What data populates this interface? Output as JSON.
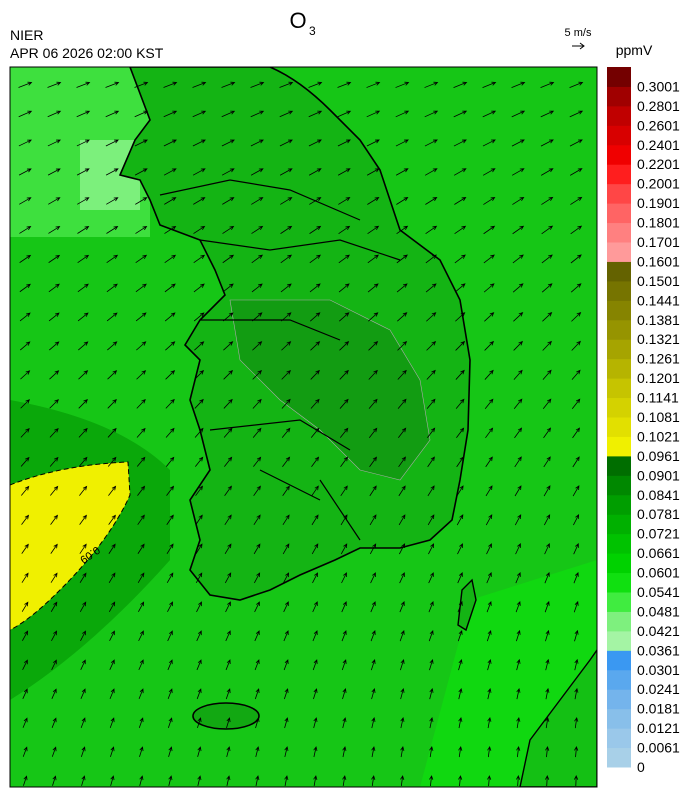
{
  "header": {
    "title": "O",
    "title_subscript": "3",
    "agency": "NIER",
    "timestamp": "APR 06 2026 02:00 KST",
    "wind_scale": "5 m/s"
  },
  "map": {
    "contour_label": "0.09"
  },
  "colorbar": {
    "unit": "ppmV",
    "levels": [
      {
        "value": 0,
        "label": "0",
        "color": "#a8d0e8"
      },
      {
        "value": 0.0061,
        "label": "0.0061",
        "color": "#9ac8ea"
      },
      {
        "value": 0.0121,
        "label": "0.0121",
        "color": "#88bfea"
      },
      {
        "value": 0.0181,
        "label": "0.0181",
        "color": "#74b4ec"
      },
      {
        "value": 0.0241,
        "label": "0.0241",
        "color": "#5aa8ee"
      },
      {
        "value": 0.0301,
        "label": "0.0301",
        "color": "#3a98f2"
      },
      {
        "value": 0.0361,
        "label": "0.0361",
        "color": "#a4f4a4"
      },
      {
        "value": 0.0421,
        "label": "0.0421",
        "color": "#7ef07e"
      },
      {
        "value": 0.0481,
        "label": "0.0481",
        "color": "#40ec40"
      },
      {
        "value": 0.0541,
        "label": "0.0541",
        "color": "#10e010"
      },
      {
        "value": 0.0601,
        "label": "0.0601",
        "color": "#00d200"
      },
      {
        "value": 0.0661,
        "label": "0.0661",
        "color": "#00c200"
      },
      {
        "value": 0.0721,
        "label": "0.0721",
        "color": "#00b000"
      },
      {
        "value": 0.0781,
        "label": "0.0781",
        "color": "#009e00"
      },
      {
        "value": 0.0841,
        "label": "0.0841",
        "color": "#008800"
      },
      {
        "value": 0.0901,
        "label": "0.0901",
        "color": "#006e00"
      },
      {
        "value": 0.0961,
        "label": "0.0961",
        "color": "#f0f000"
      },
      {
        "value": 0.1021,
        "label": "0.1021",
        "color": "#e2e000"
      },
      {
        "value": 0.1081,
        "label": "0.1081",
        "color": "#d4d200"
      },
      {
        "value": 0.1141,
        "label": "0.1141",
        "color": "#c6c400"
      },
      {
        "value": 0.1201,
        "label": "0.1201",
        "color": "#b6b400"
      },
      {
        "value": 0.1261,
        "label": "0.1261",
        "color": "#a6a400"
      },
      {
        "value": 0.1321,
        "label": "0.1321",
        "color": "#969400"
      },
      {
        "value": 0.1381,
        "label": "0.1381",
        "color": "#868400"
      },
      {
        "value": 0.1441,
        "label": "0.1441",
        "color": "#767400"
      },
      {
        "value": 0.1501,
        "label": "0.1501",
        "color": "#646200"
      },
      {
        "value": 0.1601,
        "label": "0.1601",
        "color": "#ff9a9a"
      },
      {
        "value": 0.1701,
        "label": "0.1701",
        "color": "#ff8080"
      },
      {
        "value": 0.1801,
        "label": "0.1801",
        "color": "#ff6464"
      },
      {
        "value": 0.1901,
        "label": "0.1901",
        "color": "#ff4646"
      },
      {
        "value": 0.2001,
        "label": "0.2001",
        "color": "#ff1e1e"
      },
      {
        "value": 0.2201,
        "label": "0.2201",
        "color": "#f00000"
      },
      {
        "value": 0.2401,
        "label": "0.2401",
        "color": "#d80000"
      },
      {
        "value": 0.2601,
        "label": "0.2601",
        "color": "#c00000"
      },
      {
        "value": 0.2801,
        "label": "0.2801",
        "color": "#a00000"
      },
      {
        "value": 0.3001,
        "label": "0.3001",
        "color": "#740000"
      }
    ]
  }
}
